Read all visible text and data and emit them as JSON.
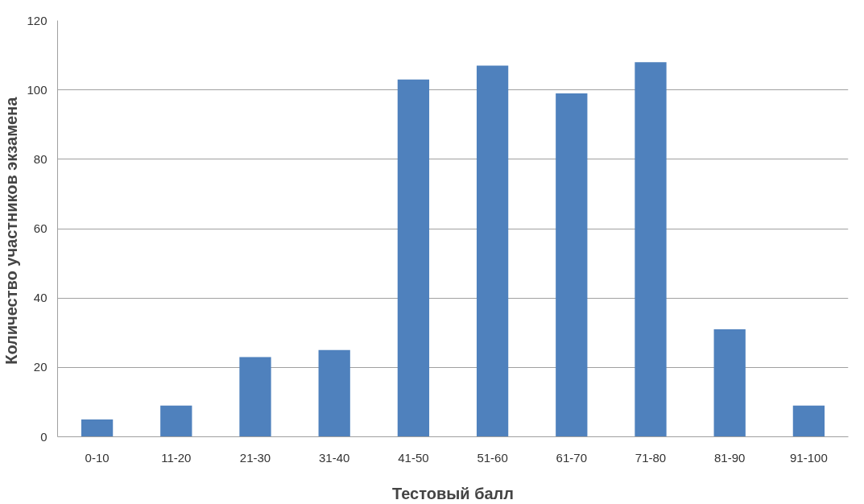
{
  "chart_data": {
    "type": "bar",
    "xlabel": "Тестовый балл",
    "ylabel": "Количество участников  экзамена",
    "categories": [
      "0-10",
      "11-20",
      "21-30",
      "31-40",
      "41-50",
      "51-60",
      "61-70",
      "71-80",
      "81-90",
      "91-100"
    ],
    "values": [
      5,
      9,
      23,
      25,
      103,
      107,
      99,
      108,
      31,
      9
    ],
    "color": "#4f81bd",
    "ylim": [
      0,
      120
    ],
    "yticks": [
      0,
      20,
      40,
      60,
      80,
      100,
      120
    ],
    "grid": "y"
  }
}
